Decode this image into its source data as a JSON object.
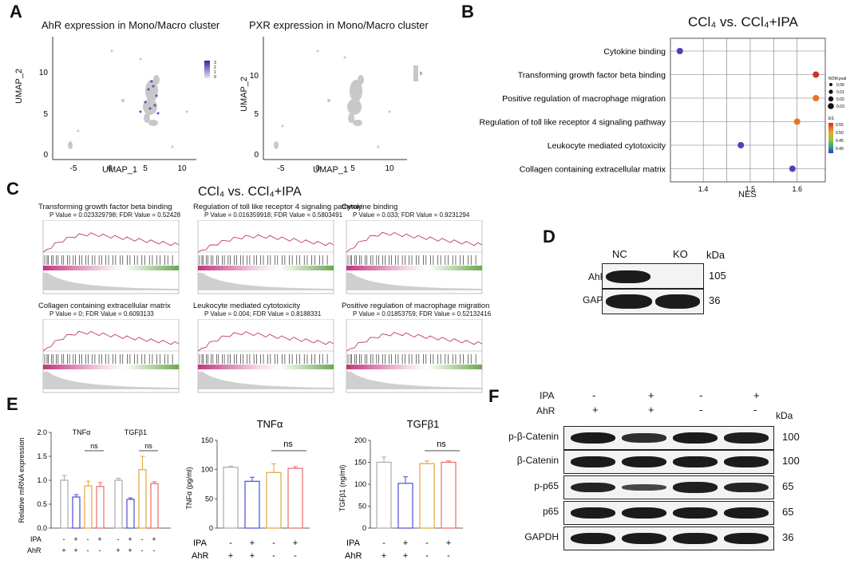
{
  "panel_letters": [
    "A",
    "B",
    "C",
    "D",
    "E",
    "F"
  ],
  "colors": {
    "magenta": "#c2357e",
    "green": "#6aa84f",
    "grey": "#cfcfcf",
    "purple": "#5b2fb0"
  },
  "panelA": {
    "left": {
      "title": "AhR expression in Mono/Macro cluster",
      "xlabel": "UMAP_1",
      "ylabel": "UMAP_2",
      "xticks": [
        "-5",
        "0",
        "5",
        "10"
      ],
      "yticks": [
        "0",
        "5",
        "10"
      ],
      "legend": [
        "3",
        "2",
        "1",
        "0"
      ]
    },
    "right": {
      "title": "PXR expression in Mono/Macro cluster",
      "xlabel": "UMAP_1",
      "ylabel": "UMAP_2",
      "xticks": [
        "-5",
        "0",
        "5",
        "10"
      ],
      "yticks": [
        "0",
        "5",
        "10"
      ],
      "legend": [
        "0"
      ]
    }
  },
  "panelB": {
    "title": "CCl₄ vs. CCl₄+IPA",
    "xlabel": "NES",
    "size_legend_title": "NOM.pval",
    "size_legend": [
      "0.00",
      "0.01",
      "0.02",
      "0.03"
    ],
    "color_legend_title": "ES",
    "color_legend": [
      "0.55",
      "0.50",
      "0.45",
      "0.40"
    ]
  },
  "chart_data": [
    {
      "type": "scatter",
      "title": "CCl₄ vs. CCl₄+IPA",
      "xlabel": "NES",
      "xticks": [
        "1.4",
        "1.5",
        "1.6"
      ],
      "xlim": [
        1.33,
        1.66
      ],
      "categories": [
        "Cytokine binding",
        "Transforming growth factor beta binding",
        "Positive regulation of macrophage migration",
        "Regulation of toll like receptor 4 signaling pathway",
        "Leukocyte mediated cytotoxicity",
        "Collagen containing extracellular matrix"
      ],
      "nes": [
        1.35,
        1.64,
        1.64,
        1.6,
        1.48,
        1.59
      ],
      "es": [
        0.4,
        0.55,
        0.52,
        0.5,
        0.4,
        0.42
      ]
    },
    {
      "type": "bar",
      "ylabel": "Relative mRNA expression",
      "yticks": [
        "0.0",
        "0.5",
        "1.0",
        "1.5",
        "2.0"
      ],
      "ylim": [
        0,
        2.0
      ],
      "groups": [
        "TNFα",
        "TGFβ1"
      ],
      "bar_colors": [
        "#aaaaaa",
        "#4b4bd6",
        "#e4a53c",
        "#e86a6a"
      ],
      "series": [
        {
          "values": [
            1.0,
            0.65,
            0.88,
            0.87
          ],
          "errors": [
            0.1,
            0.05,
            0.1,
            0.08
          ]
        },
        {
          "values": [
            1.0,
            0.6,
            1.22,
            0.93
          ],
          "errors": [
            0.04,
            0.03,
            0.28,
            0.04
          ]
        }
      ],
      "annotations": [
        "ns",
        "ns"
      ],
      "IPA": [
        "-",
        "+",
        "-",
        "+",
        "-",
        "+",
        "-",
        "+"
      ],
      "AhR": [
        "+",
        "+",
        "-",
        "-",
        "+",
        "+",
        "-",
        "-"
      ]
    },
    {
      "type": "bar",
      "title": "TNFα",
      "ylabel": "TNFα (pg/ml)",
      "yticks": [
        "0",
        "50",
        "100",
        "150"
      ],
      "ylim": [
        0,
        150
      ],
      "values": [
        104,
        80,
        95,
        102
      ],
      "errors": [
        2,
        7,
        15,
        3
      ],
      "bar_colors": [
        "#aaaaaa",
        "#4b4bd6",
        "#e4a53c",
        "#e86a6a"
      ],
      "annotation": "ns",
      "IPA": [
        "-",
        "+",
        "-",
        "+"
      ],
      "AhR": [
        "+",
        "+",
        "-",
        "-"
      ]
    },
    {
      "type": "bar",
      "title": "TGFβ1",
      "ylabel": "TGFβ1 (ng/ml)",
      "yticks": [
        "0",
        "50",
        "100",
        "150",
        "200"
      ],
      "ylim": [
        0,
        200
      ],
      "values": [
        150,
        102,
        147,
        150
      ],
      "errors": [
        12,
        15,
        6,
        3
      ],
      "bar_colors": [
        "#aaaaaa",
        "#4b4bd6",
        "#e4a53c",
        "#e86a6a"
      ],
      "annotation": "ns",
      "IPA": [
        "-",
        "+",
        "-",
        "+"
      ],
      "AhR": [
        "+",
        "+",
        "-",
        "-"
      ]
    }
  ],
  "panelC": {
    "title": "CCl₄ vs. CCl₄+IPA",
    "plots": [
      {
        "name": "Transforming growth factor beta binding",
        "stats": "P Value = 0.023329798; FDR Value = 0.52428"
      },
      {
        "name": "Regulation of toll like receptor 4 signaling pathway",
        "stats": "P Value = 0.016359918; FDR Value = 0.5803491"
      },
      {
        "name": "Cytokine binding",
        "stats": "P Value = 0.033; FDR Value = 0.9231294"
      },
      {
        "name": "Collagen containing extracellular matrix",
        "stats": "P Value = 0; FDR Value = 0.6093133"
      },
      {
        "name": "Leukocyte mediated cytotoxicity",
        "stats": "P Value = 0.004; FDR Value = 0.8188331"
      },
      {
        "name": "Positive regulation of macrophage migration",
        "stats": "P Value = 0.01853759; FDR Value = 0.52132416"
      }
    ]
  },
  "panelD": {
    "lanes": [
      "NC",
      "KO"
    ],
    "unit": "kDa",
    "rows": [
      {
        "label": "AhR",
        "kda": "105"
      },
      {
        "label": "GAPDH",
        "kda": "36"
      }
    ]
  },
  "panelF": {
    "ipa": [
      "-",
      "+",
      "-",
      "+"
    ],
    "ahr": [
      "+",
      "+",
      "-",
      "-"
    ],
    "ipa_label": "IPA",
    "ahr_label": "AhR",
    "unit": "kDa",
    "rows": [
      {
        "label": "p-β-Catenin",
        "kda": "100"
      },
      {
        "label": "β-Catenin",
        "kda": "100"
      },
      {
        "label": "p-p65",
        "kda": "65"
      },
      {
        "label": "p65",
        "kda": "65"
      },
      {
        "label": "GAPDH",
        "kda": "36"
      }
    ]
  },
  "panelE_labels": {
    "ipa": "IPA",
    "ahr": "AhR"
  }
}
